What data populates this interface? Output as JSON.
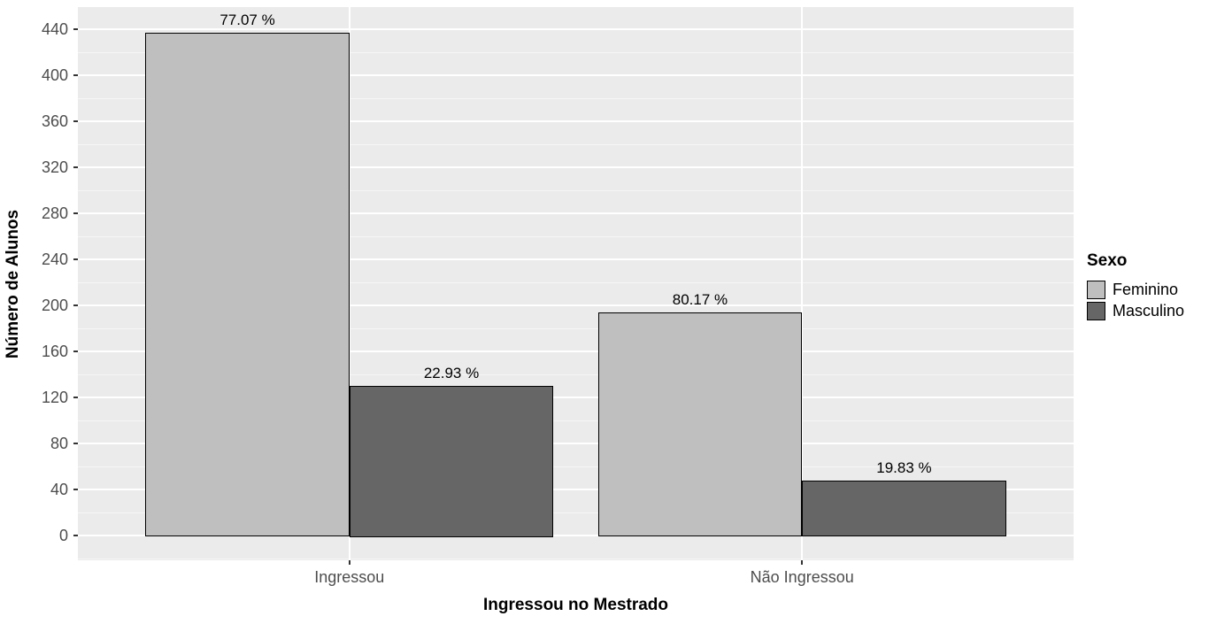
{
  "chart_data": {
    "type": "bar",
    "title": "",
    "xlabel": "Ingressou no Mestrado",
    "ylabel": "Número de Alunos",
    "categories": [
      "Ingressou",
      "Não Ingressou"
    ],
    "series": [
      {
        "name": "Feminino",
        "color": "#BFBFBF",
        "values": [
          437,
          194
        ],
        "bar_labels": [
          "77.07 %",
          "80.17 %"
        ]
      },
      {
        "name": "Masculino",
        "color": "#666666",
        "values": [
          130,
          48
        ],
        "bar_labels": [
          "22.93 %",
          "19.83 %"
        ]
      }
    ],
    "yticks": [
      0,
      40,
      80,
      120,
      160,
      200,
      240,
      280,
      320,
      360,
      400,
      440
    ],
    "ylim": [
      -22,
      459
    ],
    "minor_tick_step": 20,
    "grid": {
      "horizontal": "major+minor",
      "vertical": "category-centers",
      "color": "#FFFFFF"
    },
    "legend": {
      "title": "Sexo",
      "position": "right"
    },
    "colors": {
      "panel_background": "#EBEBEB",
      "figure_background": "#FFFFFF",
      "tick_label": "#4D4D4D",
      "axis_tick": "#333333",
      "bar_border": "#000000",
      "text": "#000000"
    }
  }
}
